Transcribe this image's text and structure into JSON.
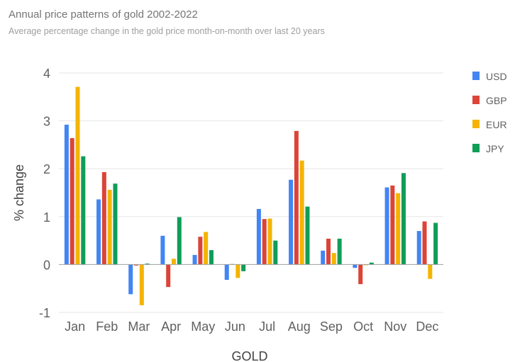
{
  "chart_data": {
    "type": "bar",
    "title": "Annual price patterns of gold 2002-2022",
    "subtitle": "Average percentage change in the gold price month-on-month over last 20 years",
    "xlabel": "GOLD",
    "ylabel": "% change",
    "ylim": [
      -1,
      4
    ],
    "yticks": [
      "-1",
      "0",
      "1",
      "2",
      "3",
      "4"
    ],
    "grid": true,
    "legend_position": "right",
    "categories": [
      "Jan",
      "Feb",
      "Mar",
      "Apr",
      "May",
      "Jun",
      "Jul",
      "Aug",
      "Sep",
      "Oct",
      "Nov",
      "Dec"
    ],
    "series": [
      {
        "name": "USD",
        "color": "#4285f4",
        "values": [
          2.92,
          1.36,
          -0.62,
          0.6,
          0.2,
          -0.32,
          1.16,
          1.77,
          0.29,
          -0.07,
          1.61,
          0.7
        ]
      },
      {
        "name": "GBP",
        "color": "#db4437",
        "values": [
          2.64,
          1.93,
          -0.02,
          -0.47,
          0.58,
          0.01,
          0.95,
          2.79,
          0.54,
          -0.41,
          1.65,
          0.9
        ]
      },
      {
        "name": "EUR",
        "color": "#f4b400",
        "values": [
          3.71,
          1.56,
          -0.85,
          0.12,
          0.68,
          -0.28,
          0.96,
          2.17,
          0.24,
          -0.01,
          1.49,
          -0.3
        ]
      },
      {
        "name": "JPY",
        "color": "#0f9d58",
        "values": [
          2.26,
          1.69,
          0.02,
          0.99,
          0.3,
          -0.14,
          0.5,
          1.21,
          0.54,
          0.04,
          1.91,
          0.87
        ]
      }
    ]
  }
}
